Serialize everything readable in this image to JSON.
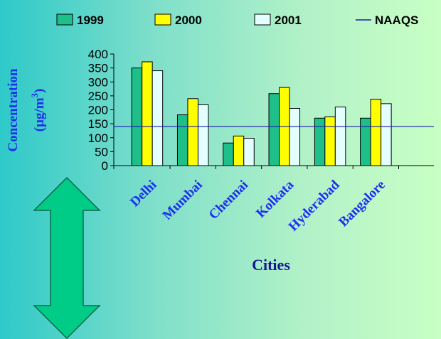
{
  "chart_data": {
    "type": "bar",
    "categories": [
      "Delhi",
      "Mumbai",
      "Chennai",
      "Kolkata",
      "Hyderabad",
      "Bangalore"
    ],
    "series": [
      {
        "name": "1999",
        "values": [
          350,
          182,
          81,
          258,
          170,
          170
        ],
        "color": "#1fbf8a"
      },
      {
        "name": "2000",
        "values": [
          372,
          240,
          106,
          280,
          175,
          238
        ],
        "color": "#ffff00"
      },
      {
        "name": "2001",
        "values": [
          340,
          218,
          98,
          205,
          210,
          222
        ],
        "color": "#e4ffff"
      }
    ],
    "reference_line": {
      "name": "NAAQS",
      "value": 140,
      "color": "#1a1aaa"
    },
    "ylabel_line1": "Concentration",
    "ylabel_line2": "(µg/m",
    "ylabel_sup": "3",
    "ylabel_line2_end": ")",
    "xlabel": "Cities",
    "ylim": [
      0,
      400
    ],
    "yticks": [
      0,
      50,
      100,
      150,
      200,
      250,
      300,
      350,
      400
    ],
    "legend_position": "top",
    "grid": false,
    "arrow_color": "#00cc88",
    "arrow_icon": "double-vertical-arrow-icon"
  }
}
